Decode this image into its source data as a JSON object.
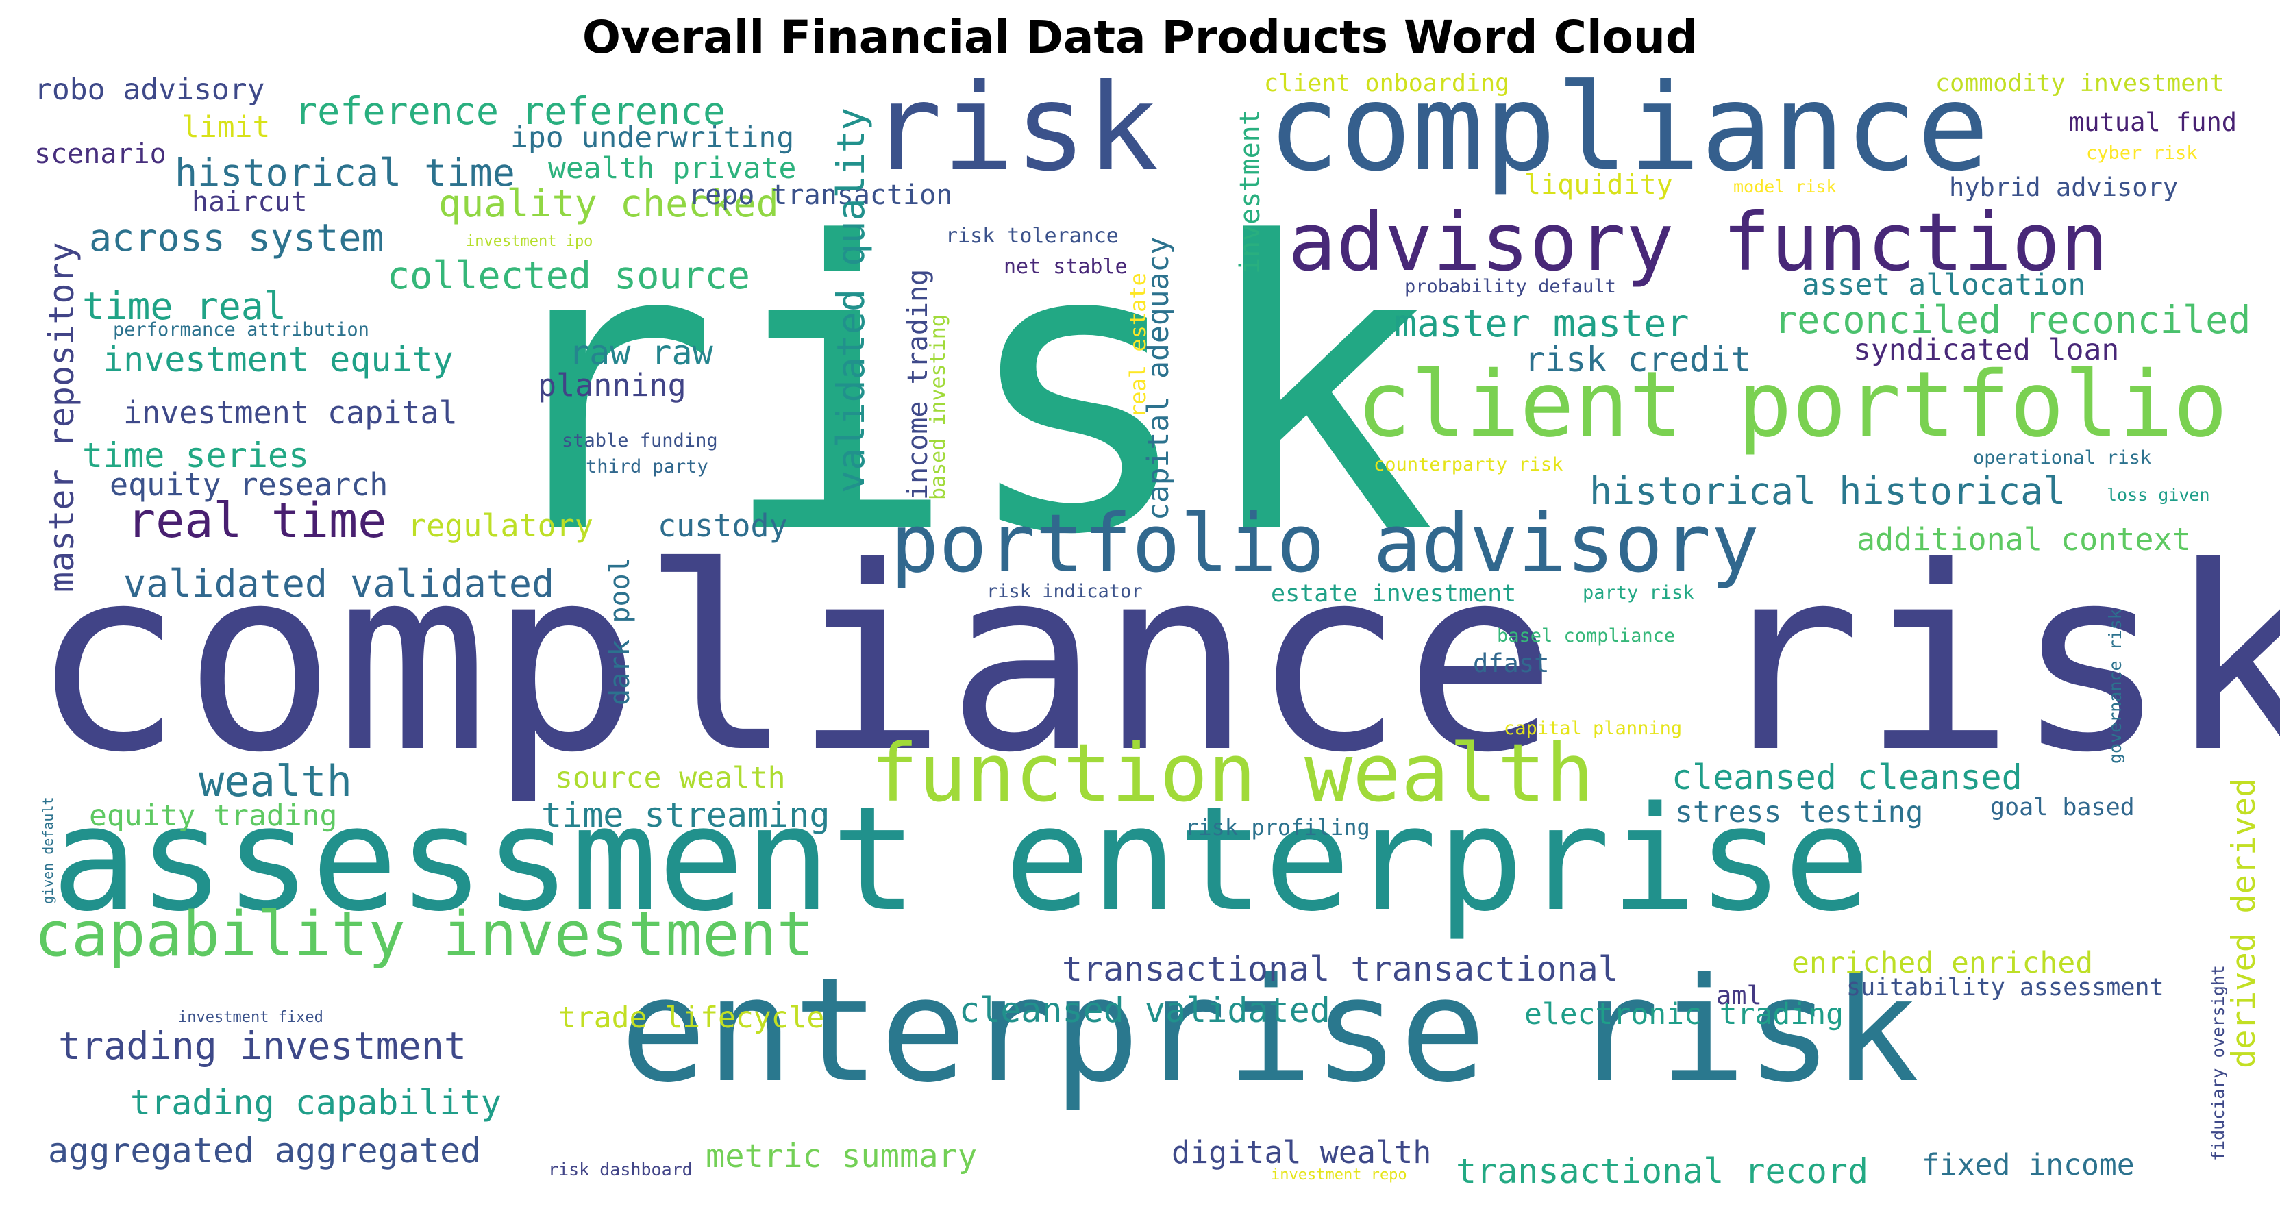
{
  "title": "Overall Financial Data Products Word Cloud",
  "words": [
    {
      "text": "risk",
      "color": "#22a884"
    },
    {
      "text": "compliance risk",
      "color": "#414487"
    },
    {
      "text": "assessment enterprise",
      "color": "#21918c"
    },
    {
      "text": "enterprise risk",
      "color": "#2a788e"
    },
    {
      "text": "risk",
      "color": "#3b528b"
    },
    {
      "text": "compliance",
      "color": "#355f8d"
    },
    {
      "text": "client portfolio",
      "color": "#7ad151"
    },
    {
      "text": "advisory function",
      "color": "#482878"
    },
    {
      "text": "portfolio advisory",
      "color": "#31688e"
    },
    {
      "text": "function wealth",
      "color": "#a0da39"
    },
    {
      "text": "capability investment",
      "color": "#5ec962"
    },
    {
      "text": "real time",
      "color": "#481f70"
    },
    {
      "text": "wealth",
      "color": "#2a788e"
    },
    {
      "text": "reference reference",
      "color": "#29af7f"
    },
    {
      "text": "historical time",
      "color": "#2c728e"
    },
    {
      "text": "quality checked",
      "color": "#90d743"
    },
    {
      "text": "across system",
      "color": "#2c728e"
    },
    {
      "text": "collected source",
      "color": "#35b779"
    },
    {
      "text": "time real",
      "color": "#20a386"
    },
    {
      "text": "investment equity",
      "color": "#1fa187"
    },
    {
      "text": "raw raw",
      "color": "#25858e"
    },
    {
      "text": "investment capital",
      "color": "#3e4989"
    },
    {
      "text": "planning",
      "color": "#414487"
    },
    {
      "text": "time series",
      "color": "#22a884"
    },
    {
      "text": "equity research",
      "color": "#3b528b"
    },
    {
      "text": "regulatory",
      "color": "#bddf26"
    },
    {
      "text": "custody",
      "color": "#2e6e8e"
    },
    {
      "text": "validated validated",
      "color": "#31688e"
    },
    {
      "text": "robo advisory",
      "color": "#3e4989"
    },
    {
      "text": "limit",
      "color": "#d8e219"
    },
    {
      "text": "scenario",
      "color": "#472f7d"
    },
    {
      "text": "haircut",
      "color": "#443983"
    },
    {
      "text": "ipo underwriting",
      "color": "#2c728e"
    },
    {
      "text": "wealth private",
      "color": "#2db27d"
    },
    {
      "text": "repo transaction",
      "color": "#3b528b"
    },
    {
      "text": "master master",
      "color": "#1fa187"
    },
    {
      "text": "reconciled reconciled",
      "color": "#4ac16d"
    },
    {
      "text": "risk credit",
      "color": "#2c728e"
    },
    {
      "text": "syndicated loan",
      "color": "#482878"
    },
    {
      "text": "asset allocation",
      "color": "#26828e"
    },
    {
      "text": "historical historical",
      "color": "#2a788e"
    },
    {
      "text": "additional context",
      "color": "#5ec962"
    },
    {
      "text": "mutual fund",
      "color": "#482173"
    },
    {
      "text": "hybrid advisory",
      "color": "#3b528b"
    },
    {
      "text": "commodity investment",
      "color": "#c2df23"
    },
    {
      "text": "client onboarding",
      "color": "#d0e11c"
    },
    {
      "text": "liquidity",
      "color": "#d8e219"
    },
    {
      "text": "cyber risk",
      "color": "#fde725"
    },
    {
      "text": "model risk",
      "color": "#fde725"
    },
    {
      "text": "probability default",
      "color": "#3e4989"
    },
    {
      "text": "risk tolerance",
      "color": "#3b528b"
    },
    {
      "text": "net stable",
      "color": "#482878"
    },
    {
      "text": "investment ipo",
      "color": "#b5de2b"
    },
    {
      "text": "performance attribution",
      "color": "#2c728e"
    },
    {
      "text": "stable funding",
      "color": "#3b528b"
    },
    {
      "text": "third party",
      "color": "#31688e"
    },
    {
      "text": "counterparty risk",
      "color": "#e5e419"
    },
    {
      "text": "operational risk",
      "color": "#2c728e"
    },
    {
      "text": "loss given",
      "color": "#1f9e89"
    },
    {
      "text": "risk indicator",
      "color": "#3b528b"
    },
    {
      "text": "estate investment",
      "color": "#1fa187"
    },
    {
      "text": "party risk",
      "color": "#22a884"
    },
    {
      "text": "basel compliance",
      "color": "#35b779"
    },
    {
      "text": "dfast",
      "color": "#31688e"
    },
    {
      "text": "capital planning",
      "color": "#e5e419"
    },
    {
      "text": "cleansed cleansed",
      "color": "#1f9e89"
    },
    {
      "text": "stress testing",
      "color": "#2c728e"
    },
    {
      "text": "goal based",
      "color": "#31688e"
    },
    {
      "text": "risk profiling",
      "color": "#2c728e"
    },
    {
      "text": "source wealth",
      "color": "#addc30"
    },
    {
      "text": "equity trading",
      "color": "#5ec962"
    },
    {
      "text": "time streaming",
      "color": "#26828e"
    },
    {
      "text": "transactional transactional",
      "color": "#3e4989"
    },
    {
      "text": "enriched enriched",
      "color": "#bddf26"
    },
    {
      "text": "aml",
      "color": "#443983"
    },
    {
      "text": "suitability assessment",
      "color": "#3b528b"
    },
    {
      "text": "electronic trading",
      "color": "#1f9e89"
    },
    {
      "text": "cleansed validated",
      "color": "#21918c"
    },
    {
      "text": "trade lifecycle",
      "color": "#c2df23"
    },
    {
      "text": "trading investment",
      "color": "#3e4989"
    },
    {
      "text": "trading capability",
      "color": "#1f9e89"
    },
    {
      "text": "aggregated aggregated",
      "color": "#3b528b"
    },
    {
      "text": "metric summary",
      "color": "#73d056"
    },
    {
      "text": "digital wealth",
      "color": "#3e4989"
    },
    {
      "text": "transactional record",
      "color": "#23a983"
    },
    {
      "text": "fixed income",
      "color": "#2c728e"
    },
    {
      "text": "risk dashboard",
      "color": "#414487"
    },
    {
      "text": "investment repo",
      "color": "#e5e419"
    },
    {
      "text": "investment fixed",
      "color": "#3b528b"
    },
    {
      "text": "master repository",
      "color": "#414487"
    },
    {
      "text": "validated quality",
      "color": "#21918c"
    },
    {
      "text": "income trading",
      "color": "#3e4989"
    },
    {
      "text": "based investing",
      "color": "#a0da39"
    },
    {
      "text": "real estate",
      "color": "#fde725"
    },
    {
      "text": "capital adequacy",
      "color": "#2c728e"
    },
    {
      "text": "investment",
      "color": "#29af7f"
    },
    {
      "text": "dark pool",
      "color": "#2c728e"
    },
    {
      "text": "governance risk",
      "color": "#2c728e"
    },
    {
      "text": "derived derived",
      "color": "#c2df23"
    },
    {
      "text": "fiduciary oversight",
      "color": "#3e4989"
    },
    {
      "text": "given default",
      "color": "#2c728e"
    }
  ]
}
